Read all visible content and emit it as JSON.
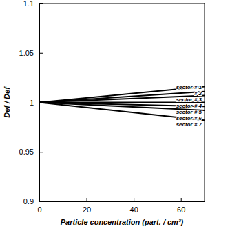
{
  "chart_data": {
    "type": "line",
    "x_label": "Particle concentration (part. / cm³)",
    "y_label": "Def / Def",
    "x": [
      0,
      70
    ],
    "series": [
      {
        "name": "sector # 1",
        "color": "#000000",
        "values": [
          1,
          1.016
        ]
      },
      {
        "name": "# 2",
        "color": "#000000",
        "values": [
          1,
          1.011
        ]
      },
      {
        "name": "sector # 3",
        "color": "#000000",
        "values": [
          1,
          1.007
        ]
      },
      {
        "name": "sector # 4",
        "color": "#000000",
        "values": [
          1,
          1.0
        ]
      },
      {
        "name": "sector # 5",
        "color": "#000000",
        "values": [
          1,
          0.996
        ]
      },
      {
        "name": "sector # 6",
        "color": "#000000",
        "values": [
          1,
          0.992
        ]
      },
      {
        "name": "sector # 7",
        "color": "#000000",
        "values": [
          1,
          0.982
        ]
      }
    ],
    "xlim": [
      0,
      70
    ],
    "xticks": [
      0,
      20,
      40,
      60
    ],
    "ylim": [
      0.9,
      1.1
    ],
    "yticks": [
      0.9,
      0.95,
      1,
      1.05,
      1.1
    ],
    "grid": false
  }
}
